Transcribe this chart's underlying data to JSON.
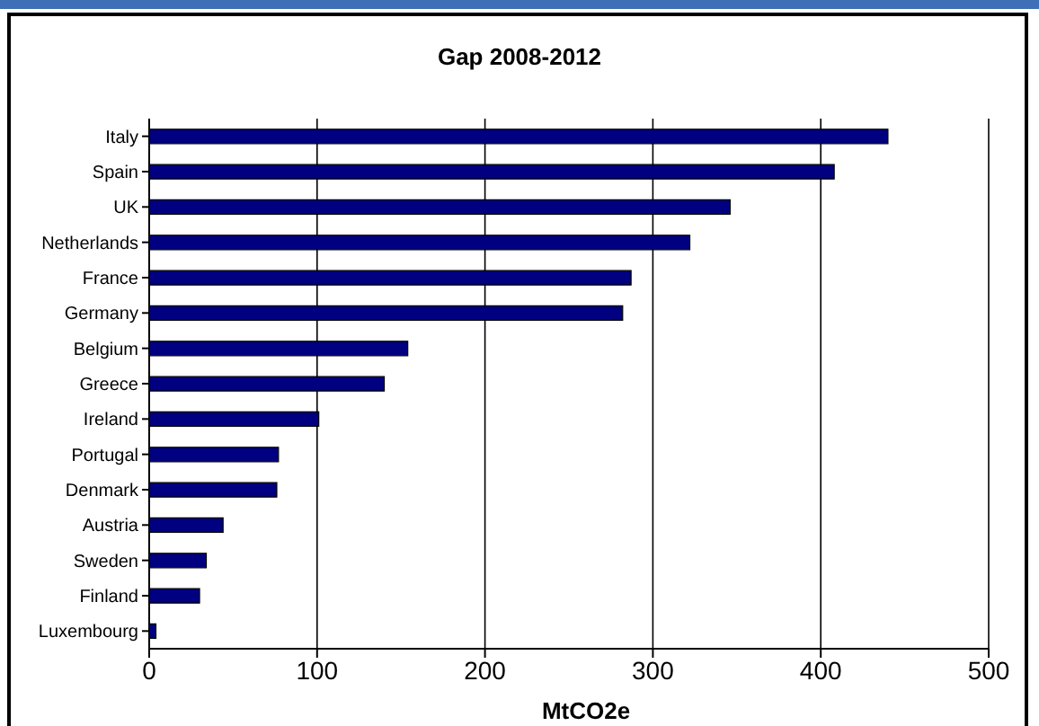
{
  "chart_data": {
    "type": "bar",
    "orientation": "horizontal",
    "title": "Gap 2008-2012",
    "xlabel": "MtCO2e",
    "categories": [
      "Italy",
      "Spain",
      "UK",
      "Netherlands",
      "France",
      "Germany",
      "Belgium",
      "Greece",
      "Ireland",
      "Portugal",
      "Denmark",
      "Austria",
      "Sweden",
      "Finland",
      "Luxembourg"
    ],
    "values": [
      440,
      408,
      346,
      322,
      287,
      282,
      154,
      140,
      101,
      77,
      76,
      44,
      34,
      30,
      4
    ],
    "color": "#000080",
    "xlim": [
      0,
      500
    ],
    "xticks": [
      0,
      100,
      200,
      300,
      400,
      500
    ],
    "grid": "x"
  }
}
